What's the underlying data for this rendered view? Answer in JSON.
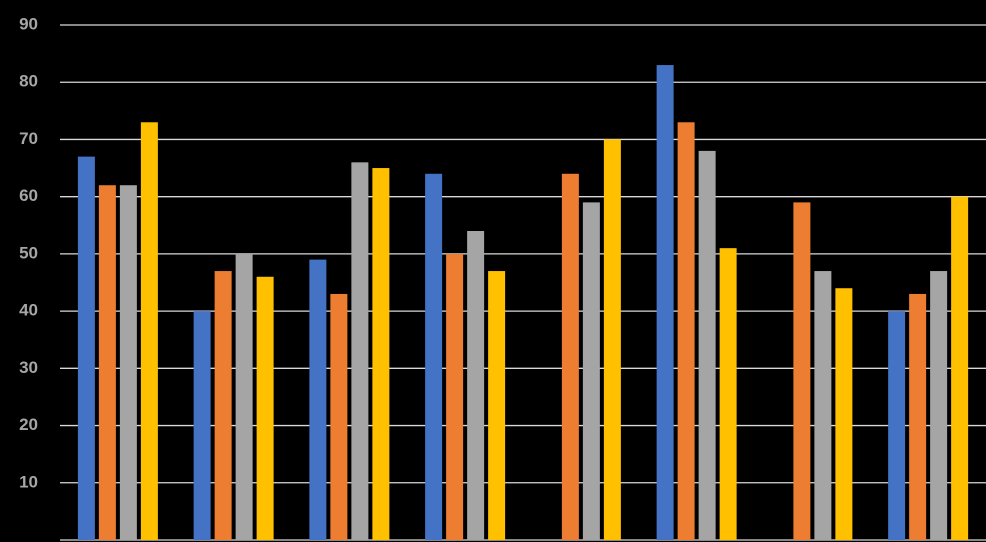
{
  "chart_data": {
    "type": "bar",
    "categories": [
      null,
      null,
      null,
      null,
      null,
      null,
      null,
      null
    ],
    "series": [
      {
        "color": "#4472c4",
        "values": [
          67,
          40,
          49,
          64,
          null,
          83,
          null,
          40
        ]
      },
      {
        "color": "#ed7d31",
        "values": [
          62,
          47,
          43,
          50,
          64,
          73,
          59,
          43
        ]
      },
      {
        "color": "#a5a5a5",
        "values": [
          62,
          50,
          66,
          54,
          59,
          68,
          47,
          47
        ]
      },
      {
        "color": "#ffc000",
        "values": [
          73,
          46,
          65,
          47,
          70,
          51,
          44,
          60
        ]
      }
    ],
    "ylim": [
      0,
      90
    ],
    "yticks": [
      10,
      20,
      30,
      40,
      50,
      60,
      70,
      80,
      90
    ],
    "grid": true
  }
}
